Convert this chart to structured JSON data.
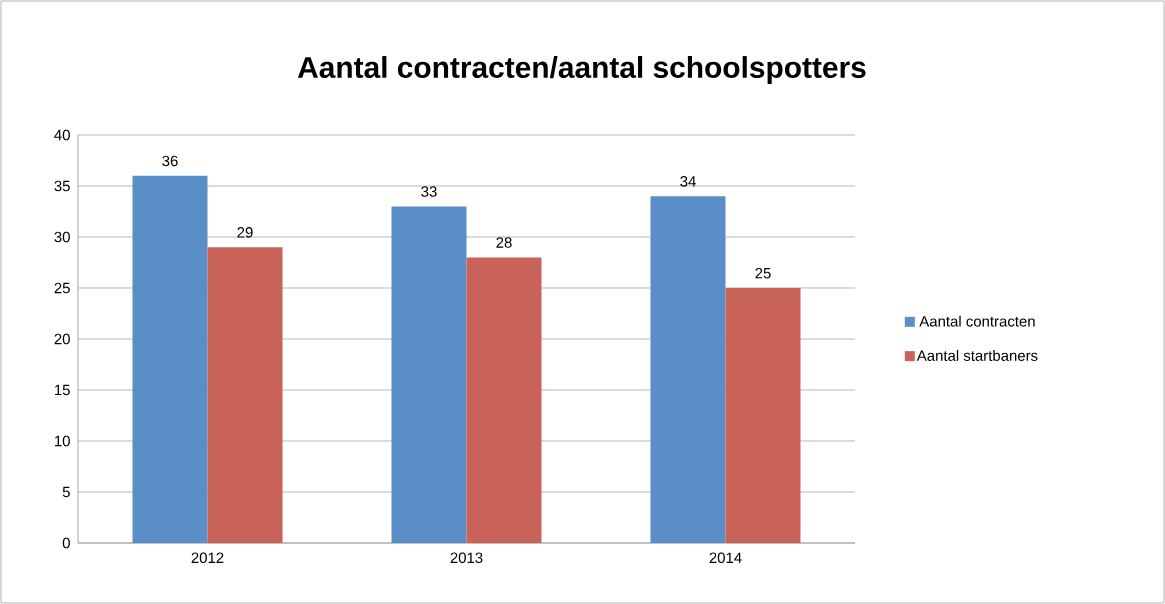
{
  "chart_data": {
    "type": "bar",
    "title": "Aantal contracten/aantal schoolspotters",
    "categories": [
      "2012",
      "2013",
      "2014"
    ],
    "series": [
      {
        "name": "Aantal contracten",
        "color": "#5a8ec6",
        "values": [
          36,
          33,
          34
        ]
      },
      {
        "name": "Aantal startbaners",
        "color": "#c9635a",
        "values": [
          29,
          28,
          25
        ]
      }
    ],
    "ylim": [
      0,
      40
    ],
    "yticks": [
      0,
      5,
      10,
      15,
      20,
      25,
      30,
      35,
      40
    ],
    "grid": "y",
    "legend": "right",
    "data_labels": true
  }
}
